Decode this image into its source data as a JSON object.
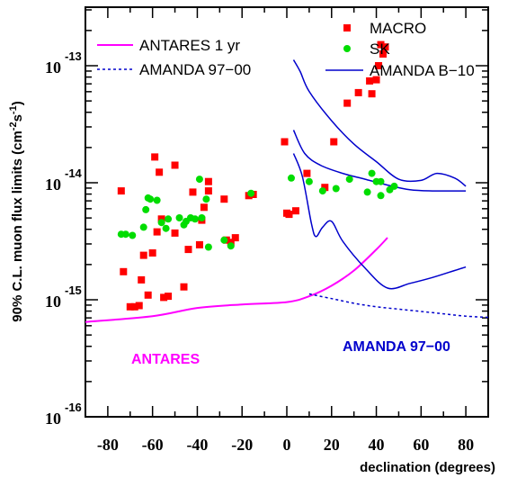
{
  "chart_data": {
    "type": "scatter",
    "xlabel": "declination (degrees)",
    "ylabel_base": "90% C.L. muon flux limits (cm",
    "ylabel_exp1": "-2",
    "ylabel_mid": "s",
    "ylabel_exp2": "-1",
    "ylabel_end": ")",
    "xlim": [
      -90,
      90
    ],
    "ylim_log10": [
      -16,
      -12.5
    ],
    "log_y": true,
    "x_ticks": [
      "-80",
      "-60",
      "-40",
      "-20",
      "0",
      "20",
      "40",
      "60",
      "80"
    ],
    "x_tick_values": [
      -80,
      -60,
      -40,
      -20,
      0,
      20,
      40,
      60,
      80
    ],
    "y_ticks": [
      {
        "base": "10",
        "exp": "-13",
        "value": -13
      },
      {
        "base": "10",
        "exp": "-14",
        "value": -14
      },
      {
        "base": "10",
        "exp": "-15",
        "value": -15
      },
      {
        "base": "10",
        "exp": "-16",
        "value": -16
      }
    ],
    "legend": {
      "antares": "ANTARES 1 yr",
      "amanda9700": "AMANDA 97−00",
      "macro": "MACRO",
      "sk": "SK",
      "amandab10": "AMANDA B−10"
    },
    "annotations": {
      "antares": "ANTARES",
      "amanda9700": "AMANDA 97−00"
    },
    "colors": {
      "antares": "#ff00ff",
      "amanda": "#0000cc",
      "macro": "#ff0000",
      "sk": "#00dd00"
    },
    "series": [
      {
        "name": "ANTARES 1 yr",
        "kind": "line",
        "points": [
          [
            -90,
            -15.19
          ],
          [
            -60,
            -15.14
          ],
          [
            -40,
            -15.07
          ],
          [
            -20,
            -15.04
          ],
          [
            0,
            -15.02
          ],
          [
            10,
            -14.97
          ],
          [
            20,
            -14.88
          ],
          [
            30,
            -14.75
          ],
          [
            40,
            -14.57
          ],
          [
            45,
            -14.47
          ]
        ]
      },
      {
        "name": "AMANDA 97−00",
        "kind": "dashed-line",
        "points": [
          [
            10,
            -14.95
          ],
          [
            20,
            -14.99
          ],
          [
            30,
            -15.03
          ],
          [
            40,
            -15.06
          ],
          [
            50,
            -15.08
          ],
          [
            60,
            -15.1
          ],
          [
            70,
            -15.12
          ],
          [
            80,
            -15.14
          ],
          [
            90,
            -15.15
          ]
        ]
      },
      {
        "name": "AMANDA B−10 upper",
        "kind": "line",
        "points": [
          [
            3,
            -12.95
          ],
          [
            6,
            -13.05
          ],
          [
            10,
            -13.22
          ],
          [
            20,
            -13.47
          ],
          [
            30,
            -13.67
          ],
          [
            40,
            -13.82
          ],
          [
            50,
            -13.97
          ],
          [
            60,
            -13.98
          ],
          [
            67,
            -13.92
          ],
          [
            75,
            -13.96
          ],
          [
            80,
            -14.03
          ]
        ]
      },
      {
        "name": "AMANDA B−10 middle",
        "kind": "line",
        "points": [
          [
            3,
            -13.55
          ],
          [
            8,
            -13.75
          ],
          [
            15,
            -13.85
          ],
          [
            25,
            -13.92
          ],
          [
            35,
            -13.97
          ],
          [
            45,
            -14.02
          ],
          [
            55,
            -14.06
          ],
          [
            65,
            -14.07
          ],
          [
            80,
            -14.07
          ]
        ]
      },
      {
        "name": "AMANDA B−10 lower",
        "kind": "line",
        "points": [
          [
            3,
            -13.75
          ],
          [
            7,
            -13.95
          ],
          [
            11,
            -14.35
          ],
          [
            13,
            -14.46
          ],
          [
            16,
            -14.38
          ],
          [
            20,
            -14.33
          ],
          [
            25,
            -14.5
          ],
          [
            35,
            -14.73
          ],
          [
            45,
            -14.9
          ],
          [
            55,
            -14.86
          ],
          [
            65,
            -14.81
          ],
          [
            75,
            -14.75
          ],
          [
            80,
            -14.72
          ]
        ]
      },
      {
        "name": "MACRO",
        "kind": "scatter-square",
        "points": [
          [
            -74,
            -14.07
          ],
          [
            -73,
            -14.76
          ],
          [
            -70,
            -15.06
          ],
          [
            -68,
            -15.06
          ],
          [
            -66,
            -15.05
          ],
          [
            -65,
            -14.83
          ],
          [
            -64,
            -14.62
          ],
          [
            -62,
            -14.96
          ],
          [
            -60,
            -14.6
          ],
          [
            -59,
            -13.78
          ],
          [
            -58,
            -14.42
          ],
          [
            -57,
            -13.91
          ],
          [
            -56,
            -14.31
          ],
          [
            -55,
            -14.98
          ],
          [
            -53,
            -14.97
          ],
          [
            -50,
            -13.85
          ],
          [
            -50,
            -14.43
          ],
          [
            -46,
            -14.89
          ],
          [
            -44,
            -14.57
          ],
          [
            -42,
            -14.08
          ],
          [
            -39,
            -14.53
          ],
          [
            -38,
            -14.32
          ],
          [
            -37,
            -14.21
          ],
          [
            -35,
            -14.07
          ],
          [
            -35,
            -13.99
          ],
          [
            -28,
            -14.14
          ],
          [
            -27,
            -14.49
          ],
          [
            -25,
            -14.51
          ],
          [
            -23,
            -14.47
          ],
          [
            -17,
            -14.11
          ],
          [
            -15,
            -14.1
          ],
          [
            -1,
            -13.65
          ],
          [
            0,
            -14.26
          ],
          [
            1,
            -14.27
          ],
          [
            4,
            -14.24
          ],
          [
            9,
            -13.92
          ],
          [
            17,
            -14.04
          ],
          [
            21,
            -13.65
          ],
          [
            27,
            -13.32
          ],
          [
            32,
            -13.23
          ],
          [
            37,
            -13.13
          ],
          [
            38,
            -13.24
          ],
          [
            40,
            -13.12
          ],
          [
            41,
            -13.0
          ],
          [
            42,
            -12.82
          ],
          [
            43,
            -12.9
          ],
          [
            44,
            -12.84
          ]
        ]
      },
      {
        "name": "SK",
        "kind": "scatter-circle",
        "points": [
          [
            -74,
            -14.44
          ],
          [
            -72,
            -14.44
          ],
          [
            -69,
            -14.45
          ],
          [
            -64,
            -14.38
          ],
          [
            -63,
            -14.23
          ],
          [
            -62,
            -14.13
          ],
          [
            -61,
            -14.14
          ],
          [
            -58,
            -14.15
          ],
          [
            -56,
            -14.34
          ],
          [
            -54,
            -14.39
          ],
          [
            -53,
            -14.31
          ],
          [
            -48,
            -14.3
          ],
          [
            -46,
            -14.36
          ],
          [
            -45,
            -14.33
          ],
          [
            -43,
            -14.3
          ],
          [
            -41,
            -14.31
          ],
          [
            -39,
            -13.97
          ],
          [
            -38,
            -14.3
          ],
          [
            -36,
            -14.14
          ],
          [
            -35,
            -14.55
          ],
          [
            -28,
            -14.49
          ],
          [
            -25,
            -14.54
          ],
          [
            -16,
            -14.09
          ],
          [
            2,
            -13.96
          ],
          [
            10,
            -13.99
          ],
          [
            16,
            -14.07
          ],
          [
            22,
            -14.05
          ],
          [
            28,
            -13.97
          ],
          [
            36,
            -14.08
          ],
          [
            38,
            -13.92
          ],
          [
            40,
            -13.99
          ],
          [
            42,
            -13.99
          ],
          [
            42,
            -14.11
          ],
          [
            46,
            -14.06
          ],
          [
            48,
            -14.03
          ]
        ]
      }
    ]
  }
}
